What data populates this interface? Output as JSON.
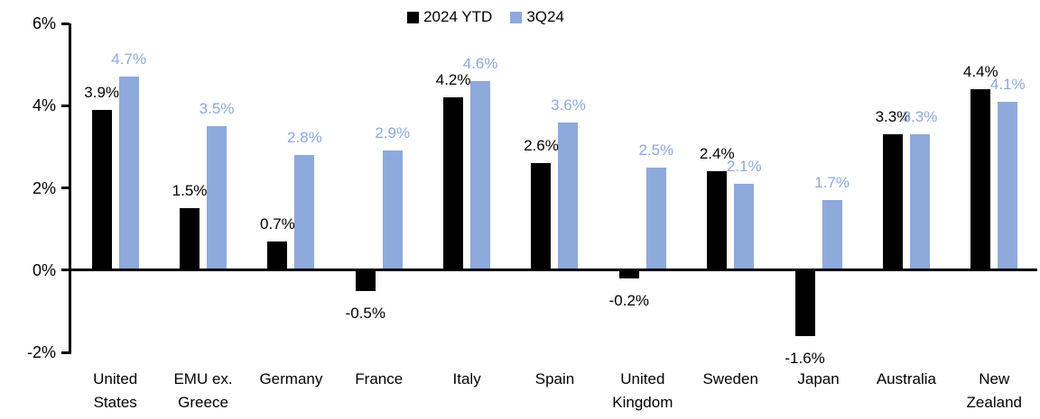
{
  "chart_data": {
    "type": "bar",
    "title": "",
    "categories": [
      "United\nStates",
      "EMU ex.\nGreece",
      "Germany",
      "France",
      "Italy",
      "Spain",
      "United\nKingdom",
      "Sweden",
      "Japan",
      "Australia",
      "New\nZealand"
    ],
    "series": [
      {
        "name": "2024 YTD",
        "color": "#000000",
        "values": [
          3.9,
          1.5,
          0.7,
          -0.5,
          4.2,
          2.6,
          -0.2,
          2.4,
          -1.6,
          3.3,
          4.4
        ]
      },
      {
        "name": "3Q24",
        "color": "#8EA9DB",
        "values": [
          4.7,
          3.5,
          2.8,
          2.9,
          4.6,
          3.6,
          2.5,
          2.1,
          1.7,
          3.3,
          4.1
        ]
      }
    ],
    "value_labels": [
      [
        "3.9%",
        "1.5%",
        "0.7%",
        "-0.5%",
        "4.2%",
        "2.6%",
        "-0.2%",
        "2.4%",
        "-1.6%",
        "3.3%",
        "4.4%"
      ],
      [
        "4.7%",
        "3.5%",
        "2.8%",
        "2.9%",
        "4.6%",
        "3.6%",
        "2.5%",
        "2.1%",
        "1.7%",
        "3.3%",
        "4.1%"
      ]
    ],
    "y_axis": {
      "min": -2,
      "max": 6,
      "unit": "%",
      "tick_values": [
        6,
        4,
        2,
        0,
        -2
      ],
      "tick_labels": [
        "6%",
        "4%",
        "2%",
        "0%",
        "-2%"
      ]
    },
    "legend": {
      "position": "top",
      "items": [
        "2024 YTD",
        "3Q24"
      ]
    },
    "grid": false,
    "axis_color": "#000000",
    "background_color": "#FFFFFF"
  }
}
